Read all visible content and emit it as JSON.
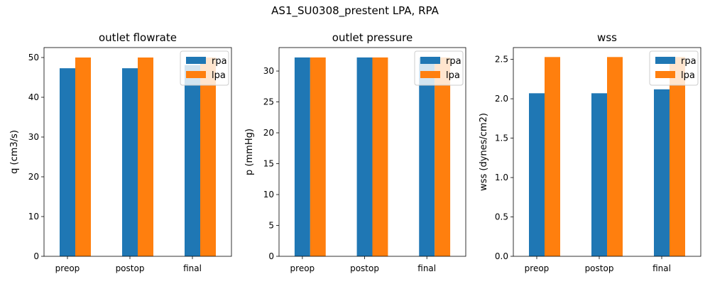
{
  "figure": {
    "suptitle": "AS1_SU0308_prestent LPA, RPA"
  },
  "colors": {
    "rpa": "#1f77b4",
    "lpa": "#ff7f0e"
  },
  "chart_data": [
    {
      "type": "bar",
      "title": "outlet flowrate",
      "xlabel": "",
      "ylabel": "q (cm3/s)",
      "categories": [
        "preop",
        "postop",
        "final"
      ],
      "series": [
        {
          "name": "rpa",
          "values": [
            47.3,
            47.3,
            48.1
          ]
        },
        {
          "name": "lpa",
          "values": [
            50.0,
            50.0,
            50.0
          ]
        }
      ],
      "ylim": [
        0,
        52.5
      ],
      "yticks": [
        0,
        10,
        20,
        30,
        40,
        50
      ],
      "ytick_labels": [
        "0",
        "10",
        "20",
        "30",
        "40",
        "50"
      ],
      "grid": false,
      "legend": "upper right"
    },
    {
      "type": "bar",
      "title": "outlet pressure",
      "xlabel": "",
      "ylabel": "p (mmHg)",
      "categories": [
        "preop",
        "postop",
        "final"
      ],
      "series": [
        {
          "name": "rpa",
          "values": [
            32.2,
            32.2,
            32.2
          ]
        },
        {
          "name": "lpa",
          "values": [
            32.2,
            32.2,
            32.2
          ]
        }
      ],
      "ylim": [
        0,
        33.8
      ],
      "yticks": [
        0,
        5,
        10,
        15,
        20,
        25,
        30
      ],
      "ytick_labels": [
        "0",
        "5",
        "10",
        "15",
        "20",
        "25",
        "30"
      ],
      "grid": false,
      "legend": "upper right"
    },
    {
      "type": "bar",
      "title": "wss",
      "xlabel": "",
      "ylabel": "wss (dynes/cm2)",
      "categories": [
        "preop",
        "postop",
        "final"
      ],
      "series": [
        {
          "name": "rpa",
          "values": [
            2.07,
            2.07,
            2.12
          ]
        },
        {
          "name": "lpa",
          "values": [
            2.53,
            2.53,
            2.53
          ]
        }
      ],
      "ylim": [
        0,
        2.65
      ],
      "yticks": [
        0.0,
        0.5,
        1.0,
        1.5,
        2.0,
        2.5
      ],
      "ytick_labels": [
        "0.0",
        "0.5",
        "1.0",
        "1.5",
        "2.0",
        "2.5"
      ],
      "grid": false,
      "legend": "upper right"
    }
  ]
}
